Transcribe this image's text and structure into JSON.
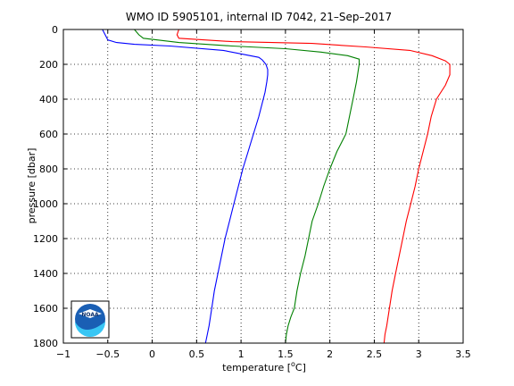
{
  "chart_data": {
    "type": "line",
    "title": "WMO ID 5905101, internal ID 7042, 21–Sep–2017",
    "xlabel_main": "temperature [",
    "xlabel_unit": "C]",
    "xlabel_degree": "o",
    "ylabel": "pressure [dbar]",
    "xlim": [
      -1,
      3.5
    ],
    "ylim": [
      0,
      1800
    ],
    "y_inverted": true,
    "grid": true,
    "x_ticks": [
      -1,
      -0.5,
      0,
      0.5,
      1,
      1.5,
      2,
      2.5,
      3,
      3.5
    ],
    "x_tick_labels": [
      "−1",
      "−0.5",
      "0",
      "0.5",
      "1",
      "1.5",
      "2",
      "2.5",
      "3",
      "3.5"
    ],
    "y_ticks": [
      0,
      200,
      400,
      600,
      800,
      1000,
      1200,
      1400,
      1600,
      1800
    ],
    "y_tick_labels": [
      "0",
      "200",
      "400",
      "600",
      "800",
      "1000",
      "1200",
      "1400",
      "1600",
      "1800"
    ],
    "logo_text": "NOAA",
    "series": [
      {
        "color": "#0000ff",
        "x": [
          -0.56,
          -0.52,
          -0.5,
          -0.4,
          -0.2,
          0.2,
          0.8,
          1.2,
          1.24,
          1.28,
          1.3,
          1.3,
          1.29,
          1.27,
          1.2,
          1.14,
          1.08,
          1.02,
          0.97,
          0.92,
          0.87,
          0.82,
          0.78,
          0.74,
          0.7,
          0.67,
          0.64,
          0.62,
          0.6
        ],
        "y": [
          0,
          40,
          60,
          75,
          85,
          95,
          120,
          160,
          175,
          200,
          230,
          260,
          300,
          360,
          500,
          600,
          700,
          800,
          900,
          1000,
          1100,
          1200,
          1300,
          1400,
          1500,
          1600,
          1700,
          1750,
          1800
        ]
      },
      {
        "color": "#008000",
        "x": [
          -0.2,
          -0.15,
          -0.1,
          0.3,
          0.9,
          1.5,
          1.9,
          2.2,
          2.33,
          2.33,
          2.3,
          2.26,
          2.18,
          2.08,
          2.0,
          1.93,
          1.87,
          1.8,
          1.76,
          1.72,
          1.67,
          1.63,
          1.6,
          1.56,
          1.53,
          1.51,
          1.5
        ],
        "y": [
          0,
          30,
          50,
          75,
          95,
          110,
          130,
          150,
          170,
          200,
          300,
          400,
          600,
          700,
          800,
          900,
          1000,
          1100,
          1200,
          1300,
          1400,
          1500,
          1600,
          1650,
          1700,
          1750,
          1800
        ]
      },
      {
        "color": "#ff0000",
        "x": [
          0.3,
          0.28,
          0.3,
          0.9,
          1.8,
          2.4,
          2.9,
          3.15,
          3.3,
          3.35,
          3.35,
          3.3,
          3.2,
          3.14,
          3.1,
          3.05,
          3.0,
          2.96,
          2.91,
          2.86,
          2.82,
          2.78,
          2.74,
          2.7,
          2.67,
          2.64,
          2.62,
          2.61
        ],
        "y": [
          0,
          30,
          50,
          70,
          80,
          100,
          120,
          150,
          180,
          200,
          260,
          320,
          400,
          500,
          600,
          700,
          800,
          900,
          1000,
          1100,
          1200,
          1300,
          1400,
          1500,
          1600,
          1700,
          1750,
          1800
        ]
      }
    ]
  }
}
